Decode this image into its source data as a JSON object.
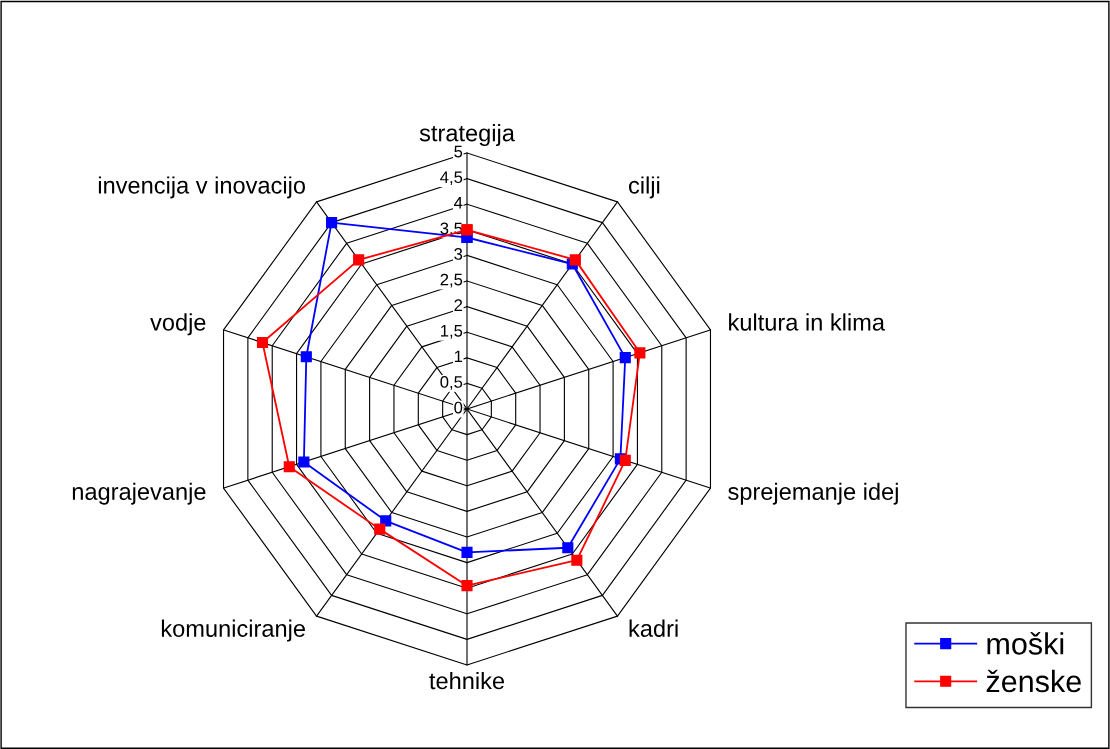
{
  "chart_data": {
    "type": "radar",
    "categories": [
      "strategija",
      "cilji",
      "kultura in klima",
      "sprejemanje idej",
      "kadri",
      "tehnike",
      "komuniciranje",
      "nagrajevanje",
      "vodje",
      "invencija v inovacijo"
    ],
    "series": [
      {
        "name": "moški",
        "color": "#0000ff",
        "values": [
          3.35,
          3.5,
          3.25,
          3.15,
          3.35,
          2.8,
          2.7,
          3.35,
          3.3,
          4.5
        ]
      },
      {
        "name": "ženske",
        "color": "#ff0000",
        "values": [
          3.5,
          3.6,
          3.55,
          3.25,
          3.65,
          3.45,
          2.9,
          3.65,
          4.2,
          3.6
        ]
      }
    ],
    "ylim": [
      0,
      5
    ],
    "yticks": [
      0,
      {
        "value": 0.5,
        "label": "0,5"
      },
      1,
      {
        "value": 1.5,
        "label": "1,5"
      },
      2,
      {
        "value": 2.5,
        "label": "2,5"
      },
      3,
      {
        "value": 3.5,
        "label": "3,5"
      },
      4,
      {
        "value": 4.5,
        "label": "4,5"
      },
      5
    ],
    "grid": true,
    "legend": "bottom right",
    "marker": "square",
    "line_style": "solid"
  }
}
